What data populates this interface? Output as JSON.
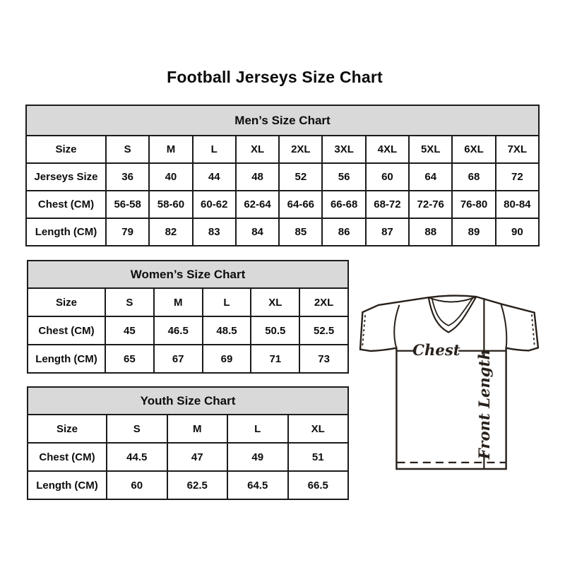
{
  "page": {
    "title": "Football Jerseys Size Chart",
    "background_color": "#ffffff",
    "table_border_color": "#1b1b1b",
    "table_header_bg": "#d9d9d9",
    "text_color": "#0d0d0d"
  },
  "tables": [
    {
      "id": "mens",
      "title": "Men’s Size Chart",
      "rows": [
        [
          "Size",
          "S",
          "M",
          "L",
          "XL",
          "2XL",
          "3XL",
          "4XL",
          "5XL",
          "6XL",
          "7XL"
        ],
        [
          "Jerseys Size",
          "36",
          "40",
          "44",
          "48",
          "52",
          "56",
          "60",
          "64",
          "68",
          "72"
        ],
        [
          "Chest (CM)",
          "56-58",
          "58-60",
          "60-62",
          "62-64",
          "64-66",
          "66-68",
          "68-72",
          "72-76",
          "76-80",
          "80-84"
        ],
        [
          "Length (CM)",
          "79",
          "82",
          "83",
          "84",
          "85",
          "86",
          "87",
          "88",
          "89",
          "90"
        ]
      ]
    },
    {
      "id": "womens",
      "title": "Women’s Size Chart",
      "rows": [
        [
          "Size",
          "S",
          "M",
          "L",
          "XL",
          "2XL"
        ],
        [
          "Chest (CM)",
          "45",
          "46.5",
          "48.5",
          "50.5",
          "52.5"
        ],
        [
          "Length (CM)",
          "65",
          "67",
          "69",
          "71",
          "73"
        ]
      ]
    },
    {
      "id": "youth",
      "title": "Youth Size Chart",
      "rows": [
        [
          "Size",
          "S",
          "M",
          "L",
          "XL"
        ],
        [
          "Chest (CM)",
          "44.5",
          "47",
          "49",
          "51"
        ],
        [
          "Length (CM)",
          "60",
          "62.5",
          "64.5",
          "66.5"
        ]
      ]
    }
  ],
  "diagram": {
    "chest_label": "Chest",
    "front_length_label": "Front Length"
  }
}
